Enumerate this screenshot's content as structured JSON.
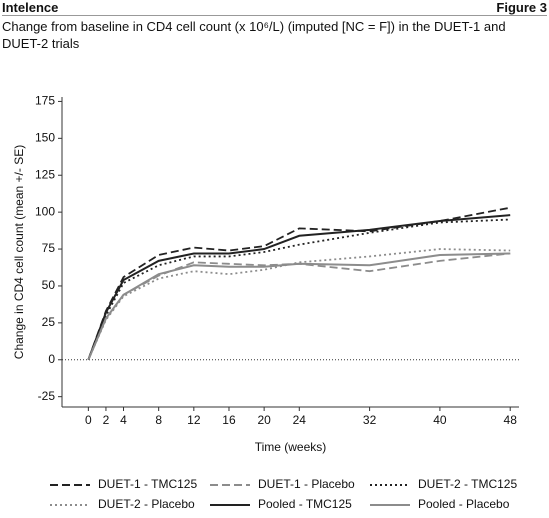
{
  "header": {
    "left": "Intelence",
    "right": "Figure 3"
  },
  "chart_data": {
    "type": "line",
    "title": "Change from baseline in CD4 cell count (x 10⁶/L) (imputed [NC = F]) in the DUET-1 and DUET-2 trials",
    "x_label": "Time (weeks)",
    "y_label": "Change in CD4 cell count (mean +/- SE)",
    "x": [
      0,
      2,
      4,
      8,
      12,
      16,
      20,
      24,
      32,
      40,
      48
    ],
    "xlim": [
      -3,
      49
    ],
    "xticks": [
      0,
      2,
      4,
      8,
      12,
      16,
      20,
      24,
      32,
      40,
      48
    ],
    "ylim": [
      -32,
      178
    ],
    "yticks": [
      -25,
      0,
      25,
      50,
      75,
      100,
      125,
      150,
      175
    ],
    "series": [
      {
        "name": "DUET-1 - TMC125",
        "color": "#222222",
        "style": "dashed",
        "values": [
          0,
          33,
          56,
          71,
          76,
          74,
          77,
          89,
          87,
          94,
          103
        ]
      },
      {
        "name": "DUET-1 - Placebo",
        "color": "#8c8c8c",
        "style": "dashed",
        "values": [
          0,
          28,
          44,
          57,
          66,
          65,
          64,
          65,
          60,
          67,
          72
        ]
      },
      {
        "name": "DUET-2 - TMC125",
        "color": "#222222",
        "style": "dotted",
        "values": [
          0,
          30,
          52,
          64,
          70,
          70,
          73,
          78,
          86,
          93,
          95
        ]
      },
      {
        "name": "DUET-2 - Placebo",
        "color": "#8c8c8c",
        "style": "dotted",
        "values": [
          0,
          27,
          43,
          55,
          60,
          58,
          61,
          66,
          70,
          75,
          74
        ]
      },
      {
        "name": "Pooled - TMC125",
        "color": "#222222",
        "style": "solid",
        "values": [
          0,
          32,
          54,
          67,
          72,
          72,
          75,
          84,
          88,
          94,
          98
        ]
      },
      {
        "name": "Pooled - Placebo",
        "color": "#8c8c8c",
        "style": "solid",
        "values": [
          0,
          28,
          44,
          58,
          64,
          63,
          63,
          65,
          64,
          71,
          72
        ]
      }
    ]
  }
}
